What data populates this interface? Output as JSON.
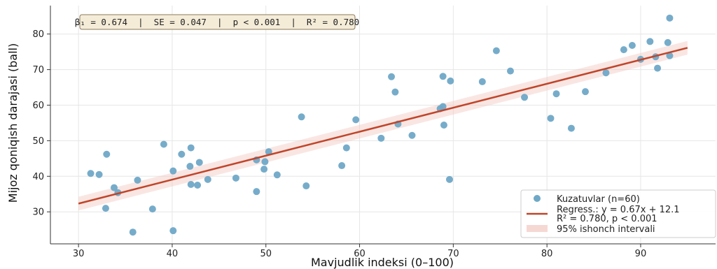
{
  "chart_data": {
    "type": "scatter",
    "xlabel": "Mavjudlik indeksi (0–100)",
    "ylabel": "Mijoz qoniqish darajasi (ball)",
    "xlim": [
      27,
      98
    ],
    "ylim": [
      21,
      88
    ],
    "xticks": [
      30,
      40,
      50,
      60,
      70,
      80,
      90
    ],
    "yticks": [
      30,
      40,
      50,
      60,
      70,
      80
    ],
    "grid": true,
    "legend_position": "bottom-right",
    "stats_box": "β₁ = 0.674  |  SE = 0.047  |  p < 0.001  |  R² = 0.780",
    "series": [
      {
        "name": "Kuzatuvlar (n=60)",
        "color": "#6fa8c7",
        "points": [
          [
            31.3,
            40.8
          ],
          [
            32.2,
            40.5
          ],
          [
            33.0,
            46.2
          ],
          [
            33.8,
            36.8
          ],
          [
            34.2,
            35.4
          ],
          [
            32.9,
            31.0
          ],
          [
            36.3,
            38.9
          ],
          [
            35.8,
            24.3
          ],
          [
            37.9,
            30.8
          ],
          [
            39.1,
            49.0
          ],
          [
            40.1,
            41.5
          ],
          [
            40.1,
            24.7
          ],
          [
            41.0,
            46.2
          ],
          [
            41.9,
            42.8
          ],
          [
            42.0,
            37.7
          ],
          [
            42.0,
            48.0
          ],
          [
            42.7,
            37.5
          ],
          [
            42.9,
            43.9
          ],
          [
            43.8,
            39.1
          ],
          [
            46.8,
            39.5
          ],
          [
            49.0,
            44.6
          ],
          [
            49.0,
            35.7
          ],
          [
            49.8,
            42.0
          ],
          [
            49.9,
            44.1
          ],
          [
            50.3,
            46.9
          ],
          [
            51.2,
            40.4
          ],
          [
            53.8,
            56.7
          ],
          [
            54.3,
            37.3
          ],
          [
            58.1,
            43.0
          ],
          [
            58.6,
            48.0
          ],
          [
            59.6,
            55.9
          ],
          [
            62.3,
            50.7
          ],
          [
            63.4,
            68.0
          ],
          [
            63.8,
            63.7
          ],
          [
            64.1,
            54.7
          ],
          [
            65.6,
            51.5
          ],
          [
            68.6,
            59.0
          ],
          [
            68.9,
            59.6
          ],
          [
            68.9,
            68.1
          ],
          [
            69.0,
            54.4
          ],
          [
            69.7,
            66.8
          ],
          [
            69.6,
            39.1
          ],
          [
            73.1,
            66.6
          ],
          [
            74.6,
            75.3
          ],
          [
            76.1,
            69.6
          ],
          [
            77.6,
            62.2
          ],
          [
            80.4,
            56.3
          ],
          [
            81.0,
            63.2
          ],
          [
            82.6,
            53.5
          ],
          [
            84.1,
            63.8
          ],
          [
            86.3,
            69.1
          ],
          [
            88.2,
            75.6
          ],
          [
            89.1,
            76.8
          ],
          [
            90.0,
            72.9
          ],
          [
            91.0,
            77.9
          ],
          [
            91.6,
            73.6
          ],
          [
            91.8,
            70.4
          ],
          [
            92.9,
            77.6
          ],
          [
            93.1,
            73.9
          ],
          [
            93.1,
            84.5
          ]
        ]
      },
      {
        "name": "Regress.: y = 0.67x + 12.1\nR² = 0.780, p < 0.001",
        "type": "line",
        "color": "#c0452a",
        "slope": 0.674,
        "intercept": 12.1,
        "x": [
          30,
          95
        ]
      },
      {
        "name": "95% ishonch intervali",
        "type": "band",
        "color": "#f2c8c0"
      }
    ]
  }
}
